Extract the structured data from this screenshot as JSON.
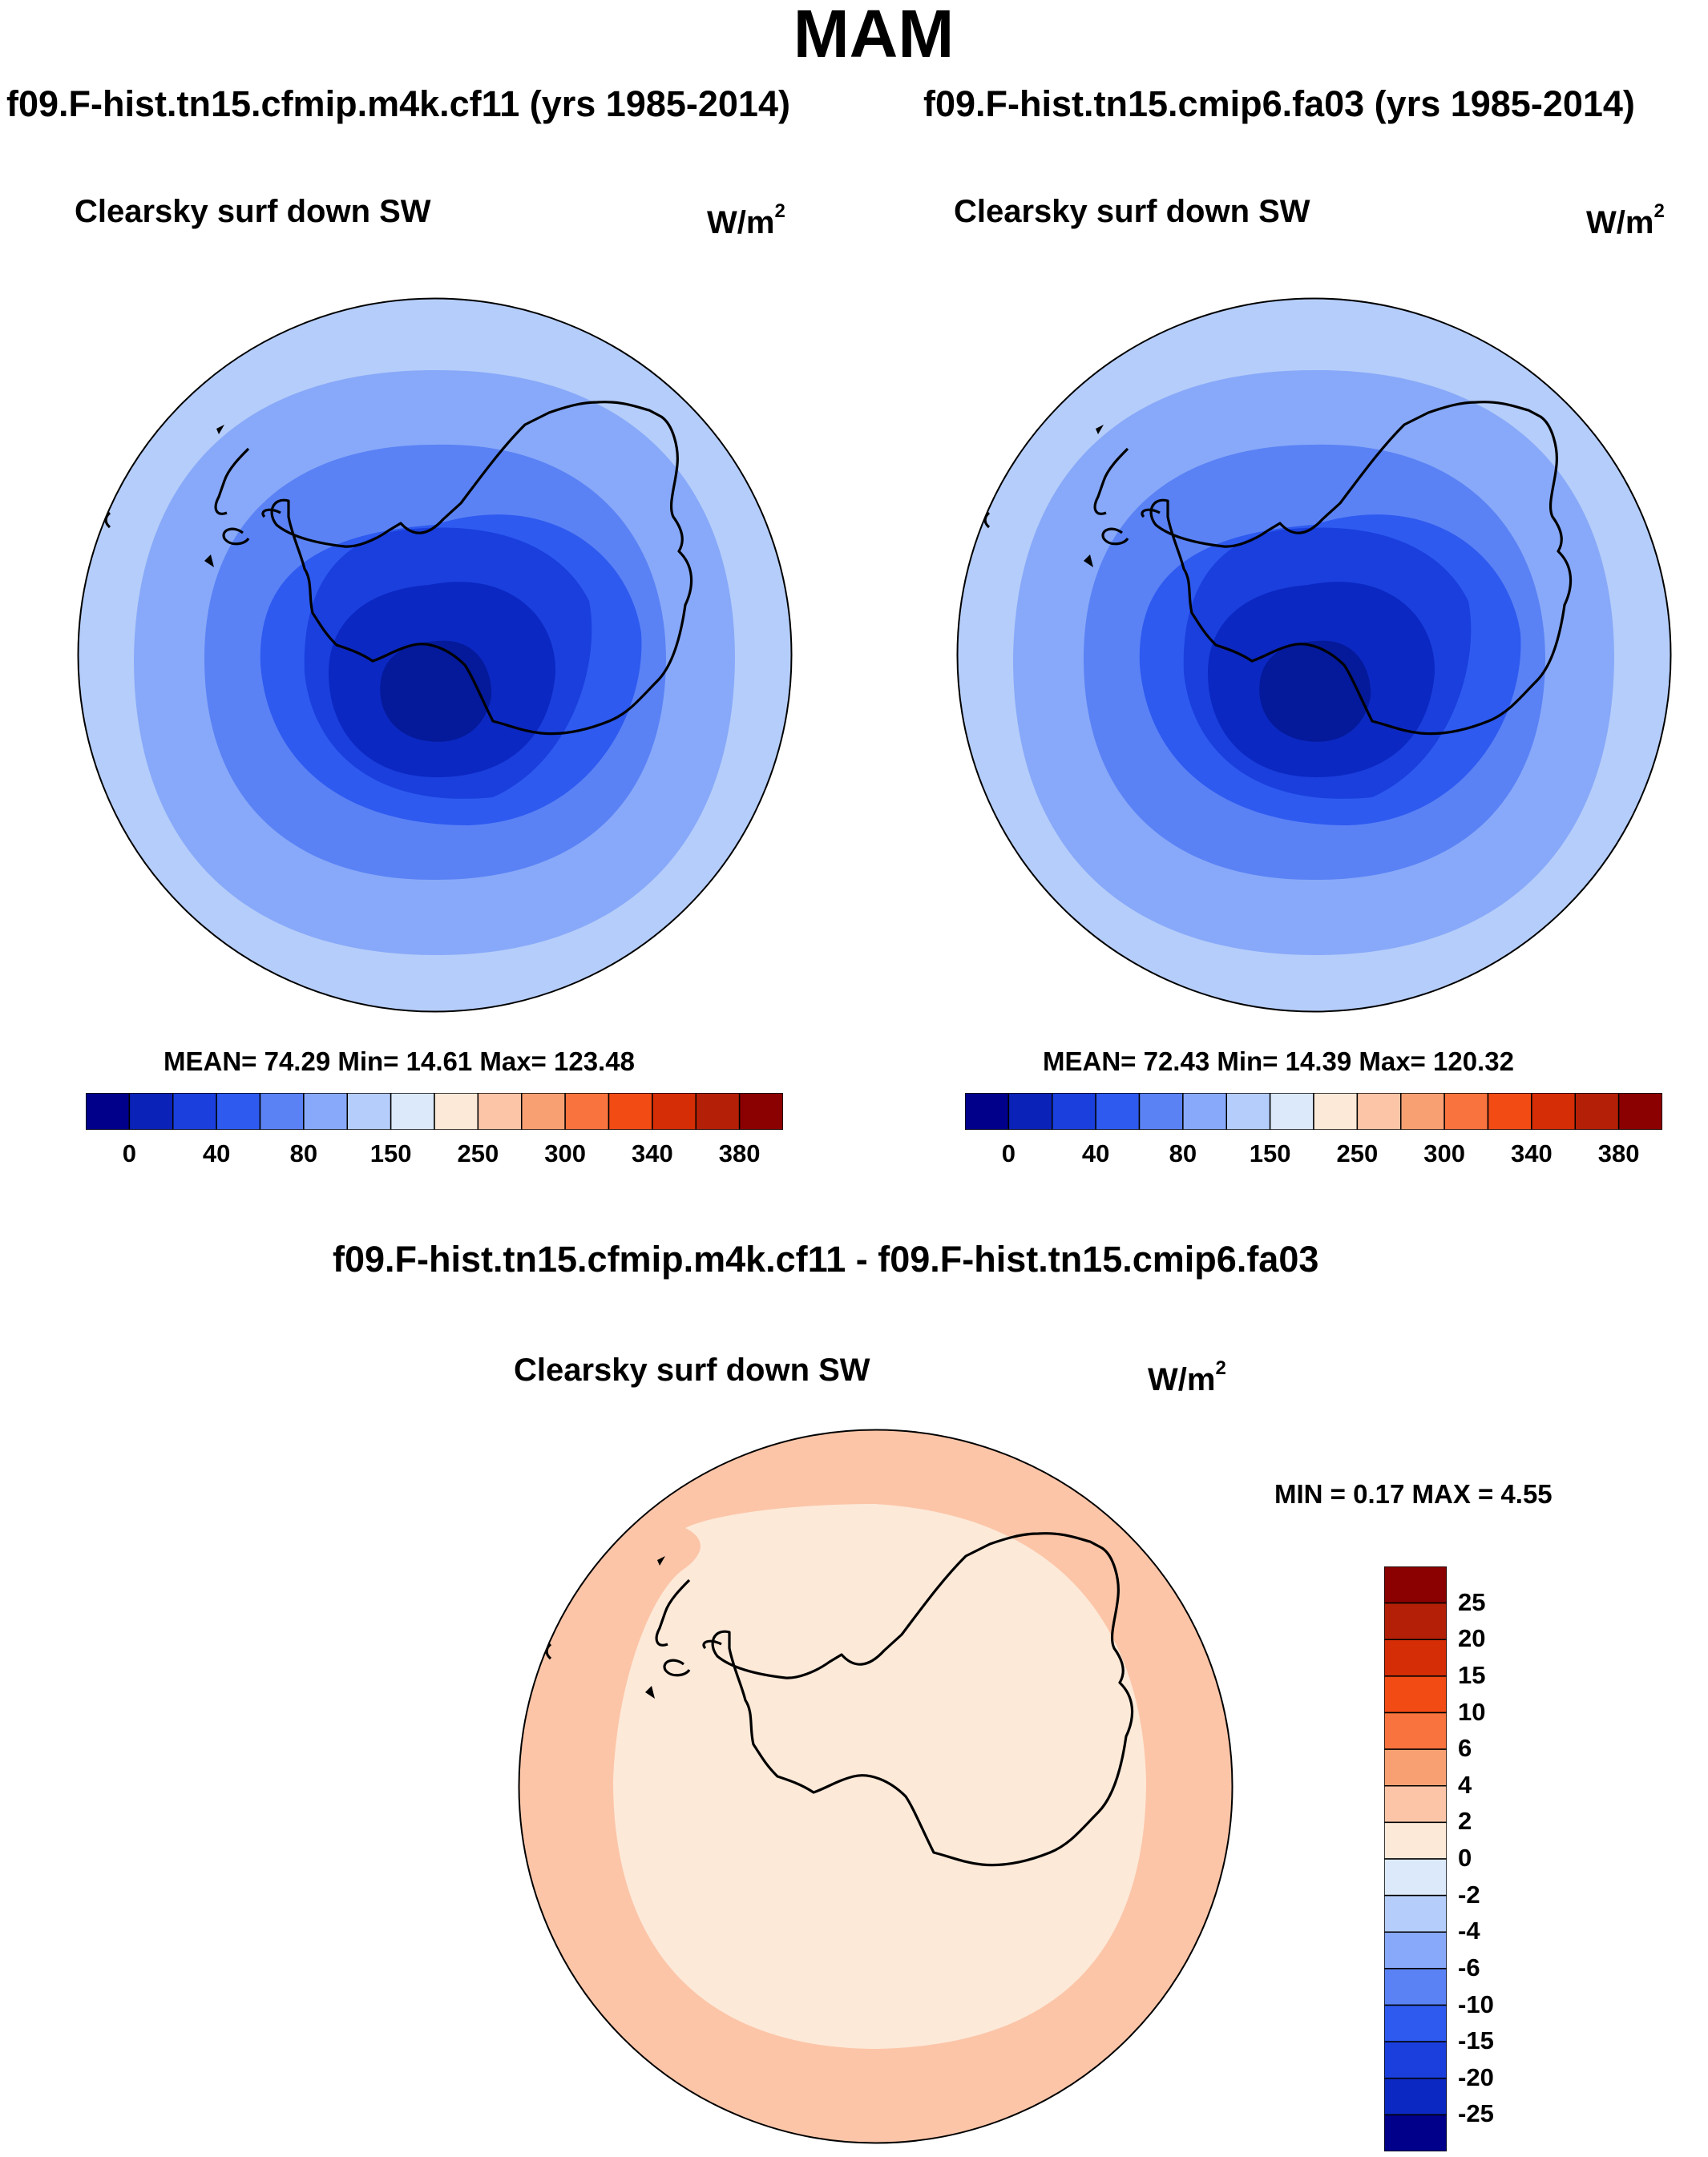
{
  "figure": {
    "season": "MAM",
    "variable": "Clearsky surf down SW",
    "unit_base": "W/m",
    "unit_exp": "2"
  },
  "panels": [
    {
      "case": "f09.F-hist.tn15.cfmip.m4k.cf11 (yrs 1985-2014)",
      "stats": "MEAN=  74.29  Min=  14.61  Max= 123.48",
      "ring_colors": [
        "#b5cdfa",
        "#88a9f9",
        "#5a82f5",
        "#2e5af0",
        "#1a3fdd",
        "#0c28c2",
        "#041a9a"
      ]
    },
    {
      "case": "f09.F-hist.tn15.cmip6.fa03 (yrs 1985-2014)",
      "stats": "MEAN=  72.43  Min=  14.39  Max= 120.32",
      "ring_colors": [
        "#b5cdfa",
        "#88a9f9",
        "#5a82f5",
        "#2e5af0",
        "#1a3fdd",
        "#0c28c2",
        "#041a9a"
      ]
    }
  ],
  "abs_colorbar": {
    "colors": [
      "#00008b",
      "#0a22b8",
      "#1a3fdd",
      "#2e5af0",
      "#5a82f5",
      "#88a9f9",
      "#b5cdfa",
      "#dbe9fb",
      "#fde9d8",
      "#fcc5a8",
      "#f9a073",
      "#f8733d",
      "#f24b14",
      "#d52d06",
      "#b32007",
      "#8b0000"
    ],
    "labels": [
      "0",
      "40",
      "80",
      "150",
      "250",
      "300",
      "340",
      "380"
    ]
  },
  "diff_panel": {
    "title": "f09.F-hist.tn15.cfmip.m4k.cf11 - f09.F-hist.tn15.cmip6.fa03",
    "minmax": "MIN =   0.17 MAX =   4.55",
    "ring_colors": [
      "#fcc5a8",
      "#fde9d8",
      "#f9a073"
    ]
  },
  "diff_colorbar": {
    "colors": [
      "#8b0000",
      "#b32007",
      "#d52d06",
      "#f24b14",
      "#f8733d",
      "#f9a073",
      "#fcc5a8",
      "#fde9d8",
      "#dbe9fb",
      "#b5cdfa",
      "#88a9f9",
      "#5a82f5",
      "#2e5af0",
      "#1a3fdd",
      "#0c28c2",
      "#00008b"
    ],
    "labels": [
      "25",
      "20",
      "15",
      "10",
      "6",
      "4",
      "2",
      "0",
      "-2",
      "-4",
      "-6",
      "-10",
      "-15",
      "-20",
      "-25"
    ]
  }
}
